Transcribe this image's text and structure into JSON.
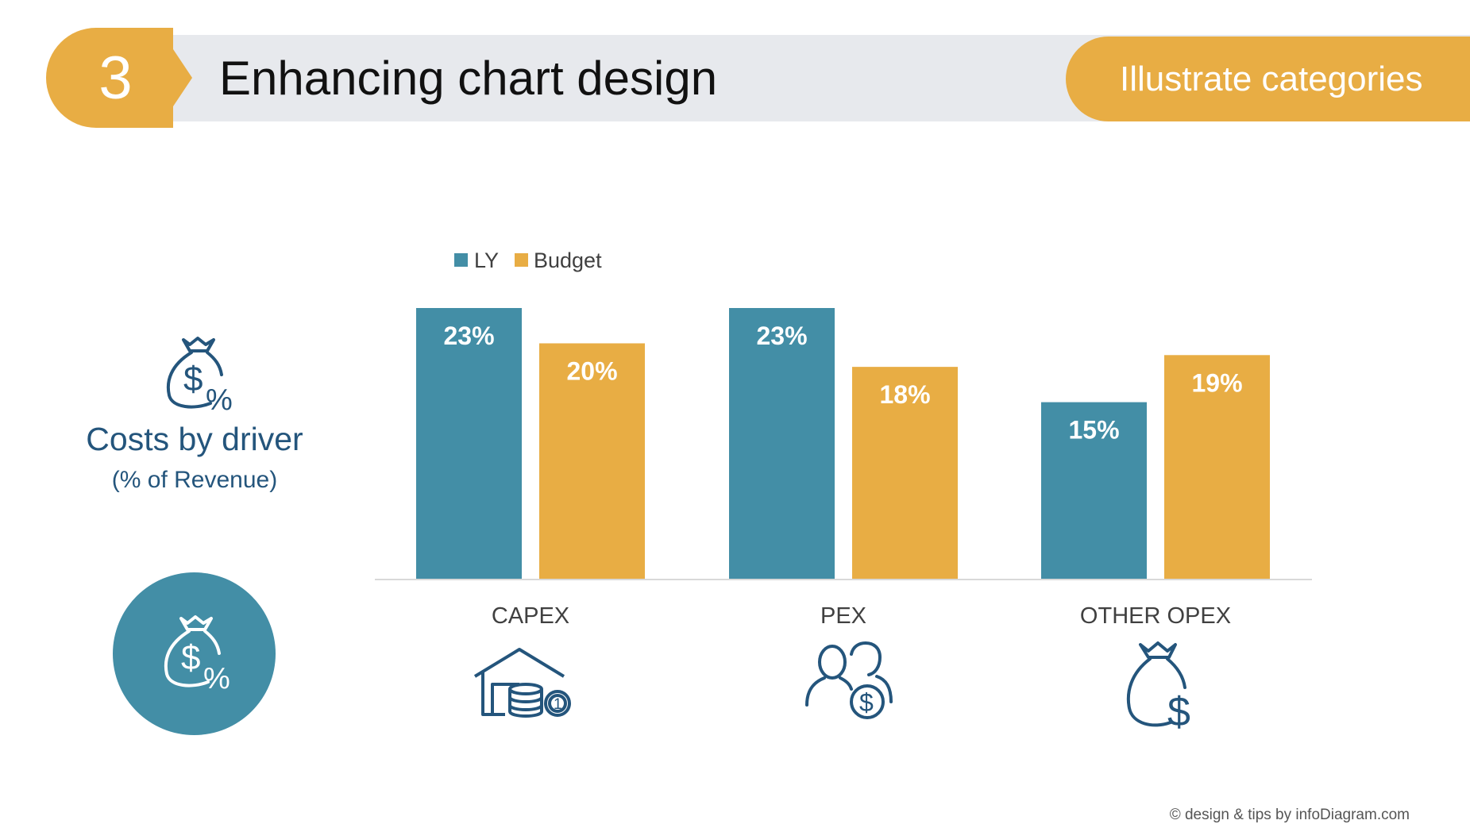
{
  "header": {
    "step_number": "3",
    "title": "Enhancing chart design",
    "tag": "Illustrate categories"
  },
  "side": {
    "title": "Costs by driver",
    "subtitle": "(% of Revenue)",
    "icon": "money-bag-percent-icon"
  },
  "colors": {
    "ly": "#438ea6",
    "budget": "#e8ad44",
    "accent": "#24557c"
  },
  "chart_data": {
    "type": "bar",
    "categories": [
      "CAPEX",
      "PEX",
      "OTHER OPEX"
    ],
    "series": [
      {
        "name": "LY",
        "values": [
          23,
          23,
          15
        ],
        "labels": [
          "23%",
          "23%",
          "15%"
        ]
      },
      {
        "name": "Budget",
        "values": [
          20,
          18,
          19
        ],
        "labels": [
          "20%",
          "18%",
          "19%"
        ]
      }
    ],
    "ylim": [
      0,
      23
    ],
    "grid": false,
    "legend": "top-left",
    "category_icons": [
      "warehouse-coins-icon",
      "people-dollar-icon",
      "money-bag-dollar-icon"
    ]
  },
  "footer": {
    "credit": "© design & tips by infoDiagram.com"
  }
}
